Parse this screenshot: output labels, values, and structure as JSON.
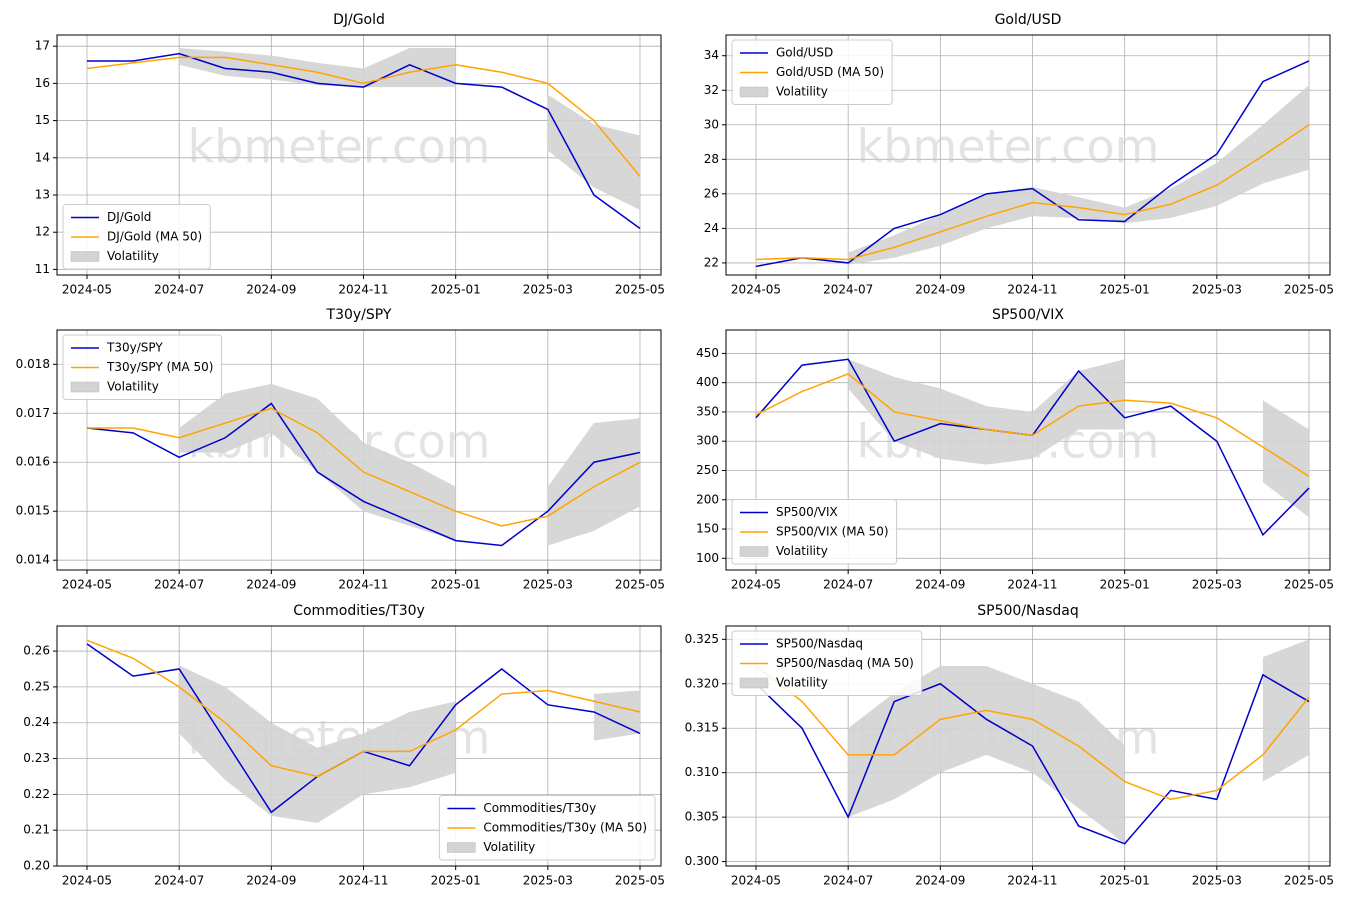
{
  "chart_data": [
    {
      "type": "line",
      "title": "DJ/Gold",
      "watermark": "kbmeter.com",
      "legend": "lower left",
      "grid": true,
      "x": [
        "2024-05",
        null,
        "2024-07",
        null,
        "2024-09",
        null,
        "2024-11",
        null,
        "2025-01",
        null,
        "2025-03",
        null,
        "2025-05"
      ],
      "ylim": [
        10.85,
        17.3
      ],
      "yticks": [
        11,
        12,
        13,
        14,
        15,
        16,
        17
      ],
      "series": [
        {
          "name": "DJ/Gold",
          "color": "#0000cd",
          "values": [
            16.6,
            16.6,
            16.8,
            16.4,
            16.3,
            16.0,
            15.9,
            16.5,
            16.0,
            15.9,
            15.3,
            13.0,
            12.1
          ]
        },
        {
          "name": "DJ/Gold (MA 50)",
          "color": "#ffa500",
          "values": [
            16.4,
            16.55,
            16.7,
            16.7,
            16.5,
            16.3,
            16.0,
            16.3,
            16.5,
            16.3,
            16.0,
            15.0,
            13.5
          ]
        },
        {
          "name": "Volatility",
          "color": "#d3d3d3",
          "lower": [
            null,
            null,
            16.5,
            16.2,
            16.1,
            15.95,
            15.9,
            15.9,
            15.9,
            null,
            14.2,
            13.2,
            12.6
          ],
          "upper": [
            null,
            null,
            16.95,
            16.85,
            16.75,
            16.55,
            16.4,
            16.95,
            16.95,
            null,
            15.7,
            14.9,
            14.6
          ]
        }
      ]
    },
    {
      "type": "line",
      "title": "Gold/USD",
      "watermark": "kbmeter.com",
      "legend": "upper left",
      "grid": true,
      "x": [
        "2024-05",
        null,
        "2024-07",
        null,
        "2024-09",
        null,
        "2024-11",
        null,
        "2025-01",
        null,
        "2025-03",
        null,
        "2025-05"
      ],
      "ylim": [
        21.3,
        35.2
      ],
      "yticks": [
        22,
        24,
        26,
        28,
        30,
        32,
        34
      ],
      "series": [
        {
          "name": "Gold/USD",
          "color": "#0000cd",
          "values": [
            21.8,
            22.3,
            22.0,
            24.0,
            24.8,
            26.0,
            26.3,
            24.5,
            24.4,
            26.5,
            28.3,
            32.5,
            33.7
          ]
        },
        {
          "name": "Gold/USD (MA 50)",
          "color": "#ffa500",
          "values": [
            22.2,
            22.3,
            22.2,
            22.9,
            23.8,
            24.7,
            25.5,
            25.2,
            24.8,
            25.4,
            26.5,
            28.2,
            30.0
          ]
        },
        {
          "name": "Volatility",
          "color": "#d3d3d3",
          "lower": [
            null,
            null,
            21.9,
            22.3,
            23.0,
            24.0,
            24.7,
            24.6,
            24.3,
            24.6,
            25.3,
            26.6,
            27.4
          ],
          "upper": [
            null,
            null,
            22.6,
            23.6,
            24.8,
            26.0,
            26.4,
            25.8,
            25.2,
            26.3,
            27.8,
            30.0,
            32.3
          ]
        }
      ]
    },
    {
      "type": "line",
      "title": "T30y/SPY",
      "watermark": "kbmeter.com",
      "legend": "upper left",
      "grid": true,
      "x": [
        "2024-05",
        null,
        "2024-07",
        null,
        "2024-09",
        null,
        "2024-11",
        null,
        "2025-01",
        null,
        "2025-03",
        null,
        "2025-05"
      ],
      "ylim": [
        0.0138,
        0.0187
      ],
      "yticks": [
        0.014,
        0.015,
        0.016,
        0.017,
        0.018
      ],
      "series": [
        {
          "name": "T30y/SPY",
          "color": "#0000cd",
          "values": [
            0.0167,
            0.0166,
            0.0161,
            0.0165,
            0.0172,
            0.0158,
            0.0152,
            0.0148,
            0.0144,
            0.0143,
            0.015,
            0.016,
            0.0162
          ]
        },
        {
          "name": "T30y/SPY (MA 50)",
          "color": "#ffa500",
          "values": [
            0.0167,
            0.0167,
            0.0165,
            0.0168,
            0.0171,
            0.0166,
            0.0158,
            0.0154,
            0.015,
            0.0147,
            0.0149,
            0.0155,
            0.016
          ]
        },
        {
          "name": "Volatility",
          "color": "#d3d3d3",
          "lower": [
            null,
            null,
            0.0162,
            0.0162,
            0.0166,
            0.0158,
            0.015,
            0.0147,
            0.0144,
            null,
            0.0143,
            0.0146,
            0.0151
          ],
          "upper": [
            null,
            null,
            0.0167,
            0.0174,
            0.0176,
            0.0173,
            0.0164,
            0.016,
            0.0155,
            null,
            0.0155,
            0.0168,
            0.0169
          ]
        }
      ]
    },
    {
      "type": "line",
      "title": "SP500/VIX",
      "watermark": "kbmeter.com",
      "legend": "lower left",
      "grid": true,
      "x": [
        "2024-05",
        null,
        "2024-07",
        null,
        "2024-09",
        null,
        "2024-11",
        null,
        "2025-01",
        null,
        "2025-03",
        null,
        "2025-05"
      ],
      "ylim": [
        80,
        490
      ],
      "yticks": [
        100,
        150,
        200,
        250,
        300,
        350,
        400,
        450
      ],
      "series": [
        {
          "name": "SP500/VIX",
          "color": "#0000cd",
          "values": [
            340,
            430,
            440,
            300,
            330,
            320,
            310,
            420,
            340,
            360,
            300,
            140,
            220
          ]
        },
        {
          "name": "SP500/VIX (MA 50)",
          "color": "#ffa500",
          "values": [
            345,
            385,
            415,
            350,
            335,
            320,
            310,
            360,
            370,
            365,
            340,
            290,
            240
          ]
        },
        {
          "name": "Volatility",
          "color": "#d3d3d3",
          "lower": [
            null,
            null,
            390,
            300,
            270,
            260,
            270,
            320,
            320,
            null,
            null,
            230,
            170
          ],
          "upper": [
            null,
            null,
            440,
            410,
            390,
            360,
            350,
            420,
            440,
            null,
            null,
            370,
            320
          ]
        }
      ]
    },
    {
      "type": "line",
      "title": "Commodities/T30y",
      "watermark": "kbmeter.com",
      "legend": "lower right",
      "grid": true,
      "x": [
        "2024-05",
        null,
        "2024-07",
        null,
        "2024-09",
        null,
        "2024-11",
        null,
        "2025-01",
        null,
        "2025-03",
        null,
        "2025-05"
      ],
      "ylim": [
        0.2,
        0.267
      ],
      "yticks": [
        {
          "value": 0.2,
          "label": "0.20"
        },
        0.21,
        0.22,
        0.23,
        0.24,
        0.25,
        0.26
      ],
      "series": [
        {
          "name": "Commodities/T30y",
          "color": "#0000cd",
          "values": [
            0.262,
            0.253,
            0.255,
            0.235,
            0.215,
            0.225,
            0.232,
            0.228,
            0.245,
            0.255,
            0.245,
            0.243,
            0.237
          ]
        },
        {
          "name": "Commodities/T30y (MA 50)",
          "color": "#ffa500",
          "values": [
            0.263,
            0.258,
            0.25,
            0.24,
            0.228,
            0.225,
            0.232,
            0.232,
            0.238,
            0.248,
            0.249,
            0.246,
            0.243
          ]
        },
        {
          "name": "Volatility",
          "color": "#d3d3d3",
          "lower": [
            null,
            null,
            0.237,
            0.224,
            0.214,
            0.212,
            0.22,
            0.222,
            0.226,
            null,
            null,
            0.235,
            0.237
          ],
          "upper": [
            null,
            null,
            0.256,
            0.25,
            0.24,
            0.233,
            0.237,
            0.243,
            0.246,
            null,
            null,
            0.248,
            0.249
          ]
        }
      ]
    },
    {
      "type": "line",
      "title": "SP500/Nasdaq",
      "watermark": "kbmeter.com",
      "legend": "upper left",
      "grid": true,
      "x": [
        "2024-05",
        null,
        "2024-07",
        null,
        "2024-09",
        null,
        "2024-11",
        null,
        "2025-01",
        null,
        "2025-03",
        null,
        "2025-05"
      ],
      "ylim": [
        0.2995,
        0.3265
      ],
      "yticks": [
        {
          "value": 0.3,
          "label": "0.300"
        },
        0.305,
        {
          "value": 0.31,
          "label": "0.310"
        },
        0.315,
        {
          "value": 0.32,
          "label": "0.320"
        },
        0.325
      ],
      "series": [
        {
          "name": "SP500/Nasdaq",
          "color": "#0000cd",
          "values": [
            0.32,
            0.315,
            0.305,
            0.318,
            0.32,
            0.316,
            0.313,
            0.304,
            0.302,
            0.308,
            0.307,
            0.321,
            0.318
          ]
        },
        {
          "name": "SP500/Nasdaq (MA 50)",
          "color": "#ffa500",
          "values": [
            0.322,
            0.318,
            0.312,
            0.312,
            0.316,
            0.317,
            0.316,
            0.313,
            0.309,
            0.307,
            0.308,
            0.312,
            0.3185
          ]
        },
        {
          "name": "Volatility",
          "color": "#d3d3d3",
          "lower": [
            null,
            null,
            0.305,
            0.307,
            0.31,
            0.312,
            0.31,
            0.306,
            0.302,
            null,
            null,
            0.309,
            0.312
          ],
          "upper": [
            null,
            null,
            0.315,
            0.319,
            0.322,
            0.322,
            0.32,
            0.318,
            0.313,
            null,
            null,
            0.323,
            0.325
          ]
        }
      ]
    }
  ]
}
